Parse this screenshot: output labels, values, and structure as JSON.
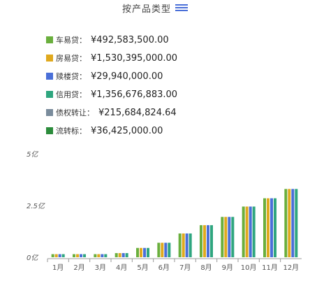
{
  "header": {
    "title": "按产品类型",
    "menu_icon": "list-menu-icon",
    "accent": "#4a6fd8"
  },
  "legend": [
    {
      "name": "车易贷",
      "value": "¥492,583,500.00",
      "color": "#6aaf3d"
    },
    {
      "name": "房易贷",
      "value": "¥1,530,395,000.00",
      "color": "#e0a91e"
    },
    {
      "name": "赎楼贷",
      "value": "¥29,940,000.00",
      "color": "#4a6fd8"
    },
    {
      "name": "信用贷",
      "value": "¥1,356,676,883.00",
      "color": "#2fa67f"
    },
    {
      "name": "债权转让",
      "value": "¥215,684,824.64",
      "color": "#7a8c9c"
    },
    {
      "name": "流转标",
      "value": "¥36,425,000.00",
      "color": "#2c8c3c"
    }
  ],
  "chart_data": {
    "type": "bar",
    "categories": [
      "1月",
      "2月",
      "3月",
      "4月",
      "5月",
      "6月",
      "7月",
      "8月",
      "9月",
      "10月",
      "11月",
      "12月"
    ],
    "y_ticks": [
      "0亿",
      "2.5亿",
      "5亿"
    ],
    "ylim": [
      0,
      5
    ],
    "series": [
      {
        "color": "#6aaf3d",
        "values": [
          0.15,
          0.15,
          0.15,
          0.2,
          0.45,
          0.7,
          1.15,
          1.55,
          1.95,
          2.45,
          2.85,
          3.3
        ]
      },
      {
        "color": "#e0a91e",
        "values": [
          0.15,
          0.15,
          0.15,
          0.2,
          0.45,
          0.7,
          1.15,
          1.55,
          1.95,
          2.45,
          2.85,
          3.3
        ]
      },
      {
        "color": "#4a6fd8",
        "values": [
          0.15,
          0.15,
          0.15,
          0.2,
          0.45,
          0.7,
          1.15,
          1.55,
          1.95,
          2.45,
          2.85,
          3.3
        ]
      },
      {
        "color": "#2fa67f",
        "values": [
          0.15,
          0.15,
          0.15,
          0.2,
          0.45,
          0.7,
          1.15,
          1.55,
          1.95,
          2.45,
          2.85,
          3.3
        ]
      }
    ],
    "grid": false,
    "legend_position": "top-left"
  }
}
